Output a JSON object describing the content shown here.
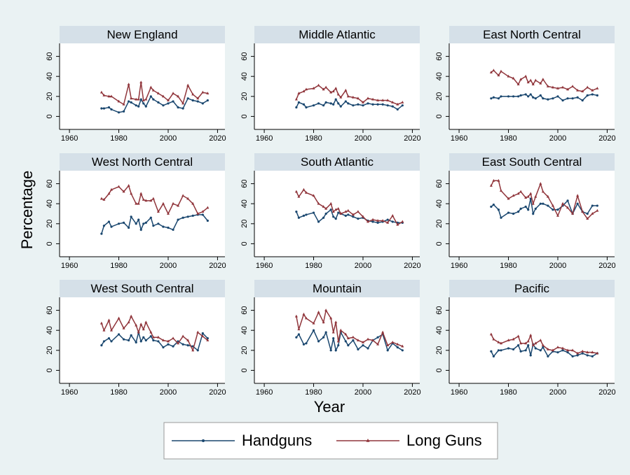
{
  "y_label": "Percentage",
  "x_label": "Year",
  "chart_data": [
    {
      "type": "line",
      "title": "New England",
      "x": [
        1973,
        1974,
        1976,
        1977,
        1980,
        1982,
        1984,
        1985,
        1987,
        1988,
        1989,
        1990,
        1991,
        1993,
        1994,
        1996,
        1998,
        2000,
        2002,
        2004,
        2006,
        2008,
        2010,
        2012,
        2014,
        2016
      ],
      "xlim": [
        1956,
        2023
      ],
      "xticks": [
        1960,
        1980,
        2000,
        2020
      ],
      "ylim": [
        -13,
        73
      ],
      "yticks": [
        0,
        20,
        40,
        60
      ],
      "series": [
        {
          "name": "Handguns",
          "color": "#1a476f",
          "marker": "circle",
          "values": [
            8,
            8,
            9,
            7,
            4,
            5,
            15,
            14,
            11,
            10,
            17,
            13,
            10,
            20,
            17,
            14,
            11,
            13,
            15,
            9,
            8,
            18,
            16,
            15,
            13,
            16
          ]
        },
        {
          "name": "Long Guns",
          "color": "#90353b",
          "marker": "triangle",
          "values": [
            24,
            21,
            20,
            20,
            15,
            12,
            32,
            18,
            17,
            17,
            34,
            16,
            17,
            29,
            26,
            23,
            20,
            16,
            23,
            20,
            13,
            31,
            22,
            18,
            24,
            23
          ]
        }
      ]
    },
    {
      "type": "line",
      "title": "Middle Atlantic",
      "x": [
        1973,
        1974,
        1976,
        1977,
        1980,
        1982,
        1984,
        1985,
        1987,
        1988,
        1989,
        1990,
        1991,
        1993,
        1994,
        1996,
        1998,
        2000,
        2002,
        2004,
        2006,
        2008,
        2010,
        2012,
        2014,
        2016
      ],
      "xlim": [
        1956,
        2023
      ],
      "xticks": [
        1960,
        1980,
        2000,
        2020
      ],
      "ylim": [
        -13,
        73
      ],
      "yticks": [
        0,
        20,
        40,
        60
      ],
      "series": [
        {
          "name": "Handguns",
          "color": "#1a476f",
          "marker": "circle",
          "values": [
            9,
            14,
            12,
            9,
            11,
            13,
            11,
            14,
            13,
            12,
            17,
            13,
            10,
            15,
            13,
            11,
            12,
            11,
            13,
            12,
            12,
            12,
            11,
            10,
            7,
            11
          ]
        },
        {
          "name": "Long Guns",
          "color": "#90353b",
          "marker": "triangle",
          "values": [
            17,
            23,
            25,
            27,
            28,
            31,
            27,
            29,
            24,
            25,
            28,
            22,
            19,
            26,
            20,
            19,
            18,
            14,
            18,
            17,
            16,
            16,
            16,
            14,
            12,
            14
          ]
        }
      ]
    },
    {
      "type": "line",
      "title": "East North Central",
      "x": [
        1973,
        1974,
        1976,
        1977,
        1980,
        1982,
        1984,
        1985,
        1987,
        1988,
        1989,
        1990,
        1991,
        1993,
        1994,
        1996,
        1998,
        2000,
        2002,
        2004,
        2006,
        2008,
        2010,
        2012,
        2014,
        2016
      ],
      "xlim": [
        1956,
        2023
      ],
      "xticks": [
        1960,
        1980,
        2000,
        2020
      ],
      "ylim": [
        -13,
        73
      ],
      "yticks": [
        0,
        20,
        40,
        60
      ],
      "series": [
        {
          "name": "Handguns",
          "color": "#1a476f",
          "marker": "circle",
          "values": [
            18,
            19,
            18,
            20,
            20,
            20,
            20,
            21,
            22,
            20,
            22,
            19,
            18,
            21,
            18,
            17,
            18,
            20,
            16,
            18,
            18,
            19,
            16,
            21,
            22,
            21
          ]
        },
        {
          "name": "Long Guns",
          "color": "#90353b",
          "marker": "triangle",
          "values": [
            44,
            46,
            41,
            45,
            40,
            38,
            32,
            37,
            40,
            34,
            36,
            32,
            36,
            33,
            37,
            30,
            29,
            28,
            29,
            27,
            30,
            26,
            25,
            29,
            26,
            28
          ]
        }
      ]
    },
    {
      "type": "line",
      "title": "West North Central",
      "x": [
        1973,
        1974,
        1976,
        1977,
        1980,
        1982,
        1984,
        1985,
        1987,
        1988,
        1989,
        1990,
        1991,
        1993,
        1994,
        1996,
        1998,
        2000,
        2002,
        2004,
        2006,
        2008,
        2010,
        2012,
        2014,
        2016
      ],
      "xlim": [
        1956,
        2023
      ],
      "xticks": [
        1960,
        1980,
        2000,
        2020
      ],
      "ylim": [
        -13,
        73
      ],
      "yticks": [
        0,
        20,
        40,
        60
      ],
      "series": [
        {
          "name": "Handguns",
          "color": "#1a476f",
          "marker": "circle",
          "values": [
            10,
            18,
            22,
            17,
            20,
            21,
            16,
            27,
            20,
            24,
            14,
            20,
            21,
            26,
            18,
            20,
            17,
            16,
            14,
            24,
            26,
            27,
            28,
            29,
            29,
            23
          ]
        },
        {
          "name": "Long Guns",
          "color": "#90353b",
          "marker": "triangle",
          "values": [
            45,
            44,
            50,
            54,
            57,
            52,
            58,
            50,
            40,
            40,
            50,
            44,
            43,
            43,
            45,
            32,
            40,
            30,
            40,
            38,
            48,
            45,
            40,
            30,
            32,
            36
          ]
        }
      ]
    },
    {
      "type": "line",
      "title": "South Atlantic",
      "x": [
        1973,
        1974,
        1976,
        1977,
        1980,
        1982,
        1984,
        1985,
        1987,
        1988,
        1989,
        1990,
        1991,
        1993,
        1994,
        1996,
        1998,
        2000,
        2002,
        2004,
        2006,
        2008,
        2010,
        2012,
        2014,
        2016
      ],
      "xlim": [
        1956,
        2023
      ],
      "xticks": [
        1960,
        1980,
        2000,
        2020
      ],
      "ylim": [
        -13,
        73
      ],
      "yticks": [
        0,
        20,
        40,
        60
      ],
      "series": [
        {
          "name": "Handguns",
          "color": "#1a476f",
          "marker": "circle",
          "values": [
            32,
            26,
            28,
            29,
            31,
            22,
            26,
            30,
            34,
            27,
            25,
            31,
            30,
            28,
            29,
            27,
            25,
            26,
            23,
            22,
            21,
            22,
            24,
            22,
            21,
            21
          ]
        },
        {
          "name": "Long Guns",
          "color": "#90353b",
          "marker": "triangle",
          "values": [
            52,
            47,
            54,
            51,
            48,
            40,
            37,
            35,
            40,
            32,
            34,
            35,
            30,
            32,
            33,
            29,
            32,
            27,
            22,
            24,
            23,
            23,
            21,
            28,
            19,
            22
          ]
        }
      ]
    },
    {
      "type": "line",
      "title": "East South Central",
      "x": [
        1973,
        1974,
        1976,
        1977,
        1980,
        1982,
        1984,
        1985,
        1987,
        1988,
        1989,
        1990,
        1991,
        1993,
        1994,
        1996,
        1998,
        2000,
        2002,
        2004,
        2006,
        2008,
        2010,
        2012,
        2014,
        2016
      ],
      "xlim": [
        1956,
        2023
      ],
      "xticks": [
        1960,
        1980,
        2000,
        2020
      ],
      "ylim": [
        -13,
        73
      ],
      "yticks": [
        0,
        20,
        40,
        60
      ],
      "series": [
        {
          "name": "Handguns",
          "color": "#1a476f",
          "marker": "circle",
          "values": [
            37,
            39,
            34,
            26,
            31,
            30,
            32,
            35,
            37,
            34,
            45,
            30,
            35,
            40,
            40,
            38,
            34,
            34,
            38,
            43,
            30,
            40,
            32,
            30,
            38,
            38
          ]
        },
        {
          "name": "Long Guns",
          "color": "#90353b",
          "marker": "triangle",
          "values": [
            58,
            63,
            63,
            53,
            45,
            48,
            50,
            52,
            46,
            47,
            50,
            40,
            47,
            60,
            52,
            47,
            38,
            28,
            40,
            36,
            30,
            48,
            32,
            25,
            30,
            33
          ]
        }
      ]
    },
    {
      "type": "line",
      "title": "West South Central",
      "x": [
        1973,
        1974,
        1976,
        1977,
        1980,
        1982,
        1984,
        1985,
        1987,
        1988,
        1989,
        1990,
        1991,
        1993,
        1994,
        1996,
        1998,
        2000,
        2002,
        2004,
        2006,
        2008,
        2010,
        2012,
        2014,
        2016
      ],
      "xlim": [
        1956,
        2023
      ],
      "xticks": [
        1960,
        1980,
        2000,
        2020
      ],
      "ylim": [
        -13,
        73
      ],
      "yticks": [
        0,
        20,
        40,
        60
      ],
      "series": [
        {
          "name": "Handguns",
          "color": "#1a476f",
          "marker": "circle",
          "values": [
            25,
            29,
            32,
            29,
            36,
            31,
            30,
            35,
            28,
            38,
            29,
            33,
            30,
            34,
            30,
            29,
            23,
            26,
            24,
            29,
            26,
            25,
            24,
            20,
            37,
            32
          ]
        },
        {
          "name": "Long Guns",
          "color": "#90353b",
          "marker": "triangle",
          "values": [
            47,
            40,
            50,
            40,
            52,
            42,
            48,
            54,
            45,
            38,
            46,
            41,
            48,
            38,
            33,
            33,
            30,
            29,
            32,
            27,
            34,
            30,
            20,
            38,
            34,
            30
          ]
        }
      ]
    },
    {
      "type": "line",
      "title": "Mountain",
      "x": [
        1973,
        1974,
        1976,
        1977,
        1980,
        1982,
        1984,
        1985,
        1987,
        1988,
        1989,
        1990,
        1991,
        1993,
        1994,
        1996,
        1998,
        2000,
        2002,
        2004,
        2006,
        2008,
        2010,
        2012,
        2014,
        2016
      ],
      "xlim": [
        1956,
        2023
      ],
      "xticks": [
        1960,
        1980,
        2000,
        2020
      ],
      "ylim": [
        -13,
        73
      ],
      "yticks": [
        0,
        20,
        40,
        60
      ],
      "series": [
        {
          "name": "Handguns",
          "color": "#1a476f",
          "marker": "circle",
          "values": [
            33,
            36,
            26,
            27,
            40,
            29,
            33,
            38,
            20,
            32,
            20,
            25,
            38,
            29,
            25,
            30,
            21,
            25,
            22,
            30,
            33,
            36,
            20,
            27,
            23,
            20
          ]
        },
        {
          "name": "Long Guns",
          "color": "#90353b",
          "marker": "triangle",
          "values": [
            54,
            41,
            56,
            52,
            47,
            58,
            48,
            60,
            52,
            38,
            48,
            29,
            40,
            36,
            32,
            33,
            30,
            28,
            31,
            30,
            26,
            38,
            25,
            28,
            26,
            24
          ]
        }
      ]
    },
    {
      "type": "line",
      "title": "Pacific",
      "x": [
        1973,
        1974,
        1976,
        1977,
        1980,
        1982,
        1984,
        1985,
        1987,
        1988,
        1989,
        1990,
        1991,
        1993,
        1994,
        1996,
        1998,
        2000,
        2002,
        2004,
        2006,
        2008,
        2010,
        2012,
        2014,
        2016
      ],
      "xlim": [
        1956,
        2023
      ],
      "xticks": [
        1960,
        1980,
        2000,
        2020
      ],
      "ylim": [
        -13,
        73
      ],
      "yticks": [
        0,
        20,
        40,
        60
      ],
      "series": [
        {
          "name": "Handguns",
          "color": "#1a476f",
          "marker": "circle",
          "values": [
            19,
            14,
            20,
            20,
            22,
            21,
            25,
            19,
            20,
            25,
            15,
            26,
            22,
            20,
            23,
            14,
            19,
            18,
            20,
            18,
            14,
            15,
            17,
            15,
            14,
            17
          ]
        },
        {
          "name": "Long Guns",
          "color": "#90353b",
          "marker": "triangle",
          "values": [
            36,
            31,
            28,
            27,
            30,
            31,
            34,
            27,
            27,
            29,
            35,
            25,
            27,
            30,
            25,
            21,
            20,
            23,
            22,
            20,
            20,
            17,
            19,
            18,
            18,
            17
          ]
        }
      ]
    }
  ]
}
